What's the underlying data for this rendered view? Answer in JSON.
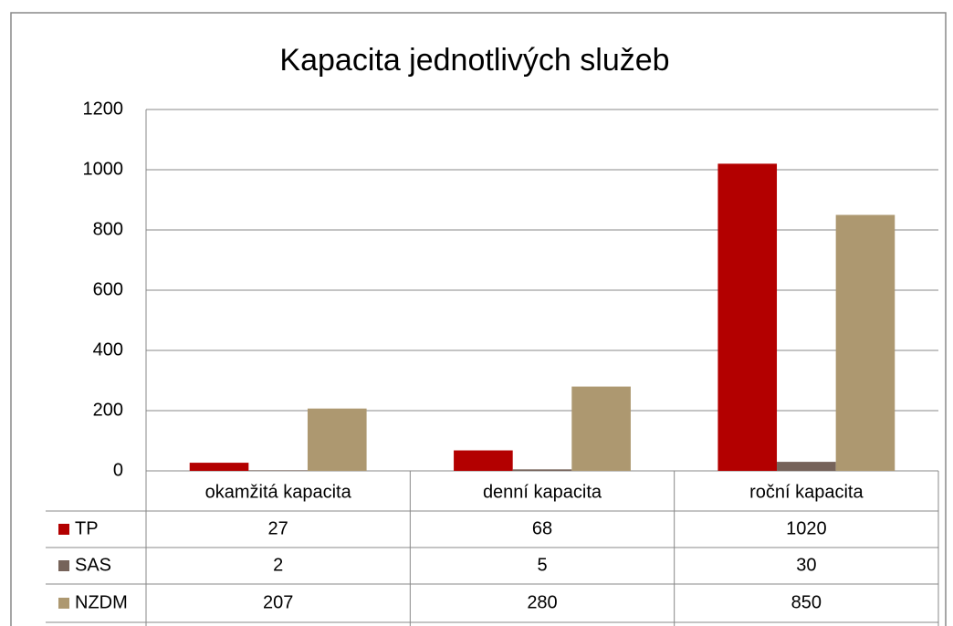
{
  "chart_data": {
    "type": "bar",
    "title": "Kapacita jednotlivých služeb",
    "categories": [
      "okamžitá kapacita",
      "denní kapacita",
      "roční kapacita"
    ],
    "series": [
      {
        "name": "TP",
        "color": "#b30000",
        "values": [
          27,
          68,
          1020
        ]
      },
      {
        "name": "SAS",
        "color": "#76635a",
        "values": [
          2,
          5,
          30
        ]
      },
      {
        "name": "NZDM",
        "color": "#ad9870",
        "values": [
          207,
          280,
          850
        ]
      }
    ],
    "ylim": [
      0,
      1200
    ],
    "yticks": [
      0,
      200,
      400,
      600,
      800,
      1000,
      1200
    ],
    "grid": true,
    "data_table": true
  }
}
